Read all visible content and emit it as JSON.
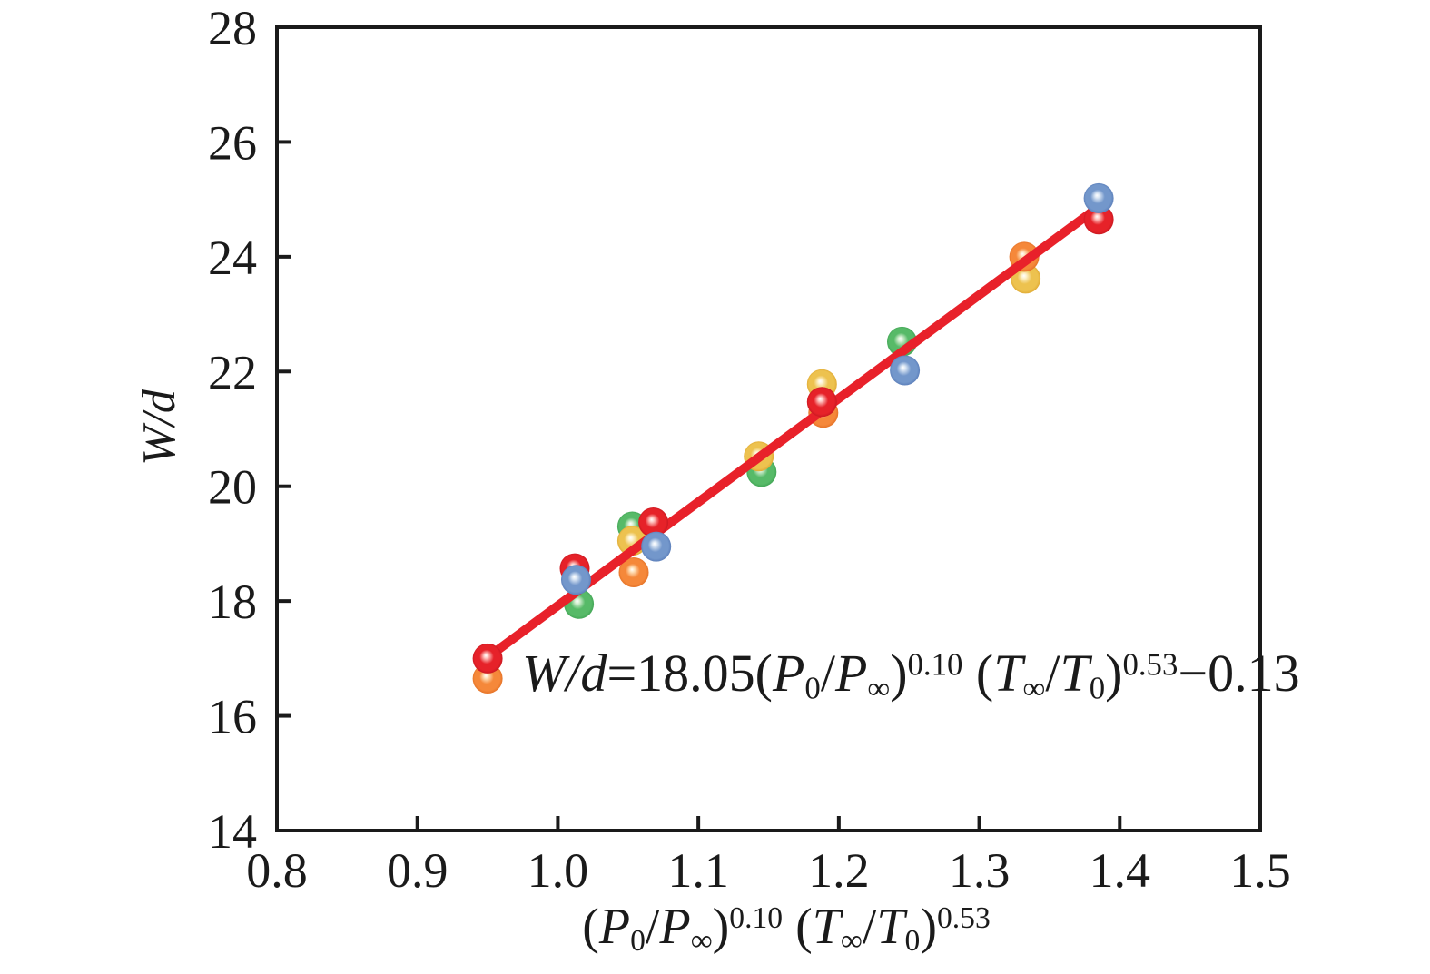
{
  "figure": {
    "background": "#ffffff",
    "frame_color": "#1a1a1a",
    "text_color": "#1a1a1a"
  },
  "chart_data": {
    "type": "scatter",
    "title": "",
    "xlabel": "(P0/P∞)^0.10 (T∞/T0)^0.53",
    "ylabel": "W/d",
    "xlabel_tokens": [
      {
        "v": "("
      },
      {
        "v": "P",
        "s": "it"
      },
      {
        "v": "0",
        "s": "sub"
      },
      {
        "v": "/"
      },
      {
        "v": "P",
        "s": "it"
      },
      {
        "v": "∞",
        "s": "sub"
      },
      {
        "v": ")"
      },
      {
        "v": "0.10",
        "s": "sup"
      },
      {
        "v": " ("
      },
      {
        "v": "T",
        "s": "it"
      },
      {
        "v": "∞",
        "s": "sub"
      },
      {
        "v": "/"
      },
      {
        "v": "T",
        "s": "it"
      },
      {
        "v": "0",
        "s": "sub"
      },
      {
        "v": ")"
      },
      {
        "v": "0.53",
        "s": "sup"
      }
    ],
    "ylabel_tokens": [
      {
        "v": "W/d",
        "s": "it"
      }
    ],
    "x_axis": {
      "min": 0.8,
      "max": 1.5,
      "tick_labels": [
        "0.8",
        "0.9",
        "1.0",
        "1.1",
        "1.2",
        "1.3",
        "1.4",
        "1.5"
      ],
      "tick_values": [
        0.8,
        0.9,
        1.0,
        1.1,
        1.2,
        1.3,
        1.4,
        1.5
      ],
      "inner_tick_values": [
        0.9,
        1.0,
        1.1,
        1.2,
        1.3,
        1.4
      ]
    },
    "y_axis": {
      "min": 14,
      "max": 28,
      "tick_labels": [
        "14",
        "16",
        "18",
        "20",
        "22",
        "24",
        "26",
        "28"
      ],
      "tick_values": [
        14,
        16,
        18,
        20,
        22,
        24,
        26,
        28
      ],
      "inner_tick_values": [
        16,
        18,
        20,
        22,
        24,
        26
      ]
    },
    "grid": false,
    "legend": false,
    "series_colors": {
      "red": {
        "main": "#e62229",
        "light": "#ffc9c4",
        "dark": "#c3161f"
      },
      "orange": {
        "main": "#f5883a",
        "light": "#ffe3bd",
        "dark": "#e06d22"
      },
      "green": {
        "main": "#57ba68",
        "light": "#d8f0d5",
        "dark": "#3da051"
      },
      "blue": {
        "main": "#7397cb",
        "light": "#dde8f5",
        "dark": "#5679b6"
      },
      "yellow": {
        "main": "#edc24f",
        "light": "#fdf3d0",
        "dark": "#dda52e"
      }
    },
    "points": [
      {
        "series": "orange",
        "x": 0.95,
        "y": 16.65,
        "layer": "behind"
      },
      {
        "series": "green",
        "x": 1.015,
        "y": 17.95,
        "layer": "behind"
      },
      {
        "series": "green",
        "x": 1.053,
        "y": 19.3,
        "layer": "behind"
      },
      {
        "series": "yellow",
        "x": 1.053,
        "y": 19.05,
        "layer": "behind"
      },
      {
        "series": "orange",
        "x": 1.054,
        "y": 18.5,
        "layer": "behind"
      },
      {
        "series": "green",
        "x": 1.145,
        "y": 20.25,
        "layer": "behind"
      },
      {
        "series": "yellow",
        "x": 1.143,
        "y": 20.52,
        "layer": "behind"
      },
      {
        "series": "yellow",
        "x": 1.188,
        "y": 21.78,
        "layer": "behind"
      },
      {
        "series": "orange",
        "x": 1.189,
        "y": 21.28,
        "layer": "behind"
      },
      {
        "series": "green",
        "x": 1.245,
        "y": 22.52,
        "layer": "behind"
      },
      {
        "series": "yellow",
        "x": 1.333,
        "y": 23.62,
        "layer": "behind"
      },
      {
        "series": "orange",
        "x": 1.332,
        "y": 24.0,
        "layer": "behind"
      },
      {
        "series": "red",
        "x": 0.95,
        "y": 17.0,
        "layer": "front"
      },
      {
        "series": "red",
        "x": 1.012,
        "y": 18.57,
        "layer": "front"
      },
      {
        "series": "blue",
        "x": 1.013,
        "y": 18.37,
        "layer": "front"
      },
      {
        "series": "red",
        "x": 1.068,
        "y": 19.37,
        "layer": "front"
      },
      {
        "series": "blue",
        "x": 1.07,
        "y": 18.95,
        "layer": "front"
      },
      {
        "series": "red",
        "x": 1.188,
        "y": 21.47,
        "layer": "front"
      },
      {
        "series": "blue",
        "x": 1.247,
        "y": 22.02,
        "layer": "front"
      },
      {
        "series": "red",
        "x": 1.385,
        "y": 24.65,
        "layer": "front"
      },
      {
        "series": "blue",
        "x": 1.385,
        "y": 25.02,
        "layer": "front"
      }
    ],
    "fit_line": {
      "color": "#e8212a",
      "slope": 18.05,
      "intercept": -0.13,
      "x_start": 0.948,
      "x_end": 1.387
    },
    "annotation": {
      "equation": "W/d=18.05(P0/P∞)^0.10 (T∞/T0)^0.53−0.13",
      "equation_tokens": [
        {
          "v": "W/d",
          "s": "it"
        },
        {
          "v": "=18.05("
        },
        {
          "v": "P",
          "s": "it"
        },
        {
          "v": "0",
          "s": "sub"
        },
        {
          "v": "/"
        },
        {
          "v": "P",
          "s": "it"
        },
        {
          "v": "∞",
          "s": "sub"
        },
        {
          "v": ")"
        },
        {
          "v": "0.10",
          "s": "sup"
        },
        {
          "v": " ("
        },
        {
          "v": "T",
          "s": "it"
        },
        {
          "v": "∞",
          "s": "sub"
        },
        {
          "v": "/"
        },
        {
          "v": "T",
          "s": "it"
        },
        {
          "v": "0",
          "s": "sub"
        },
        {
          "v": ")"
        },
        {
          "v": "0.53",
          "s": "sup"
        },
        {
          "v": "−0.13"
        }
      ]
    }
  }
}
